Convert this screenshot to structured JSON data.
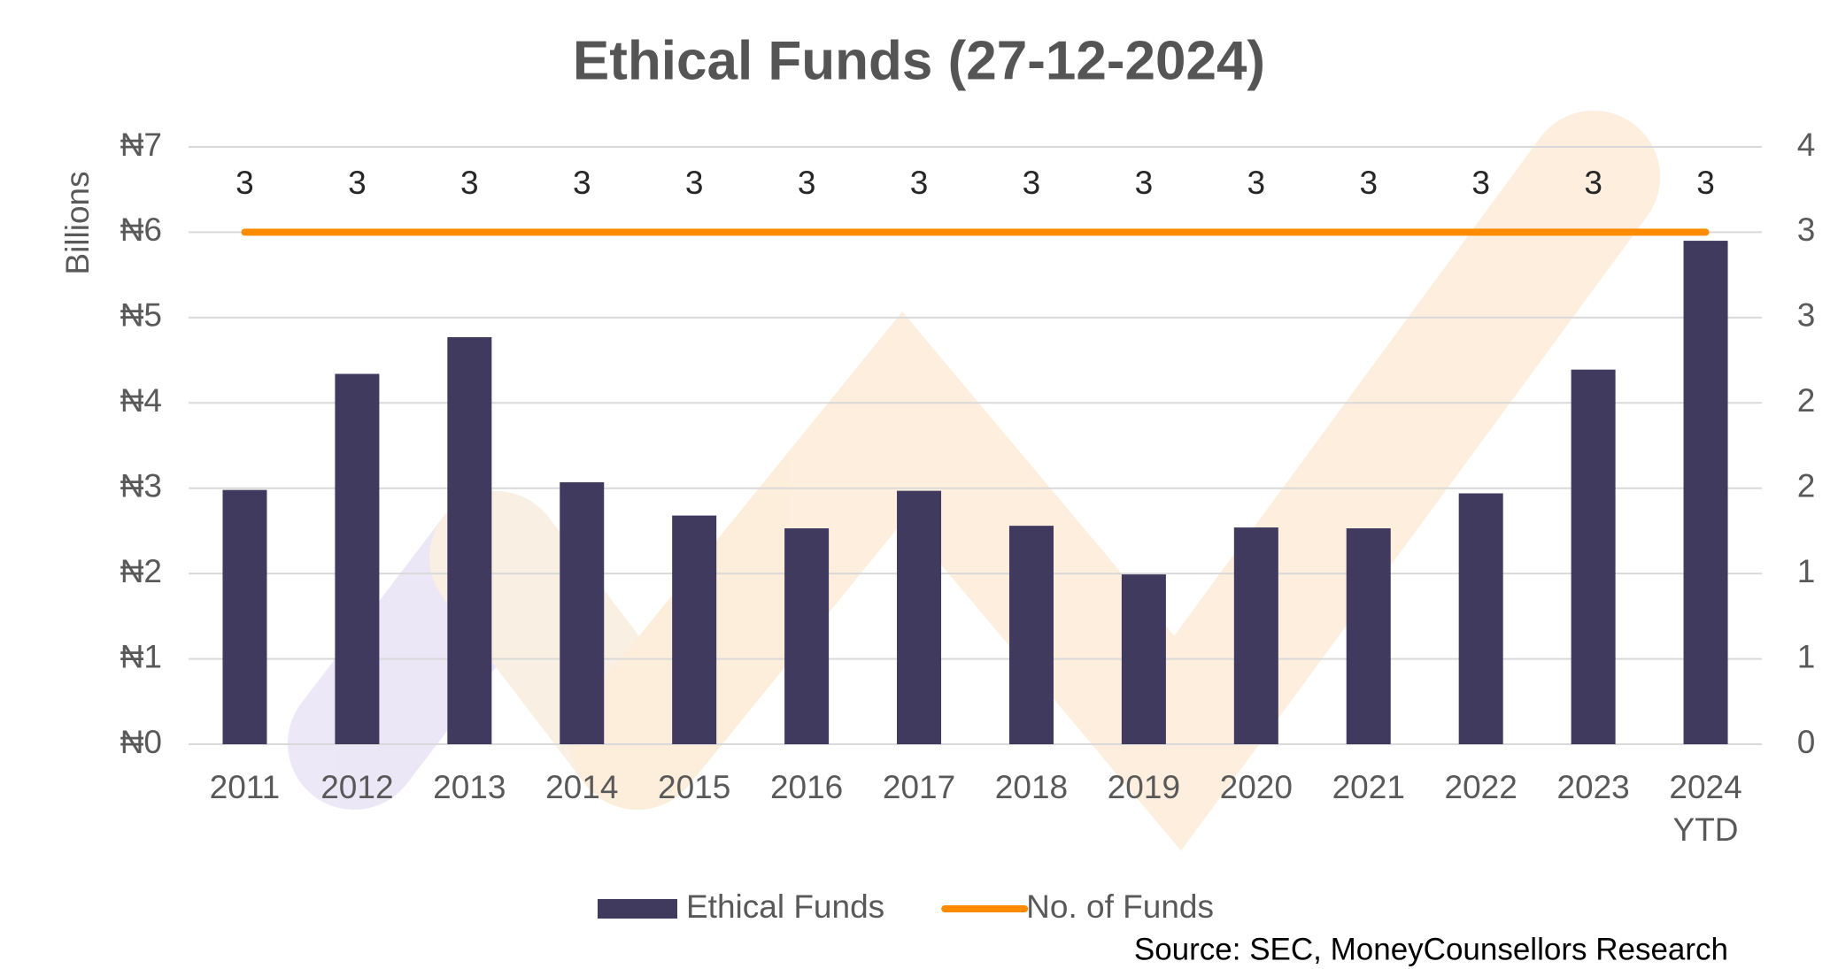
{
  "chart_data": {
    "type": "bar+line",
    "title": "Ethical Funds (27-12-2024)",
    "y_axis_label": "Billions",
    "categories": [
      "2011",
      "2012",
      "2013",
      "2014",
      "2015",
      "2016",
      "2017",
      "2018",
      "2019",
      "2020",
      "2021",
      "2022",
      "2023",
      "2024\nYTD"
    ],
    "series": [
      {
        "name": "Ethical Funds",
        "type": "bar",
        "color": "#3f3a5e",
        "axis": "y",
        "values": [
          2.98,
          4.34,
          4.77,
          3.07,
          2.68,
          2.53,
          2.97,
          2.56,
          1.99,
          2.54,
          2.53,
          2.94,
          4.39,
          5.9
        ]
      },
      {
        "name": "No. of Funds",
        "type": "line",
        "color": "#ff8c00",
        "axis": "y2",
        "values": [
          3,
          3,
          3,
          3,
          3,
          3,
          3,
          3,
          3,
          3,
          3,
          3,
          3,
          3
        ]
      }
    ],
    "ylim": [
      0,
      7
    ],
    "yticks": [
      {
        "value": 0,
        "label": "₦0"
      },
      {
        "value": 1,
        "label": "₦1"
      },
      {
        "value": 2,
        "label": "₦2"
      },
      {
        "value": 3,
        "label": "₦3"
      },
      {
        "value": 4,
        "label": "₦4"
      },
      {
        "value": 5,
        "label": "₦5"
      },
      {
        "value": 6,
        "label": "₦6"
      },
      {
        "value": 7,
        "label": "₦7"
      }
    ],
    "y2lim": [
      0,
      3.5
    ],
    "y2ticks": [
      0,
      {
        "value": 0.5,
        "label": "1"
      },
      1,
      {
        "value": 1.5,
        "label": "2"
      },
      2,
      {
        "value": 2.5,
        "label": "3"
      },
      3,
      {
        "value": 3.5,
        "label": "4"
      }
    ],
    "grid": true,
    "legend": "bottom",
    "source": "Source: SEC, MoneyCounsellors Research"
  }
}
